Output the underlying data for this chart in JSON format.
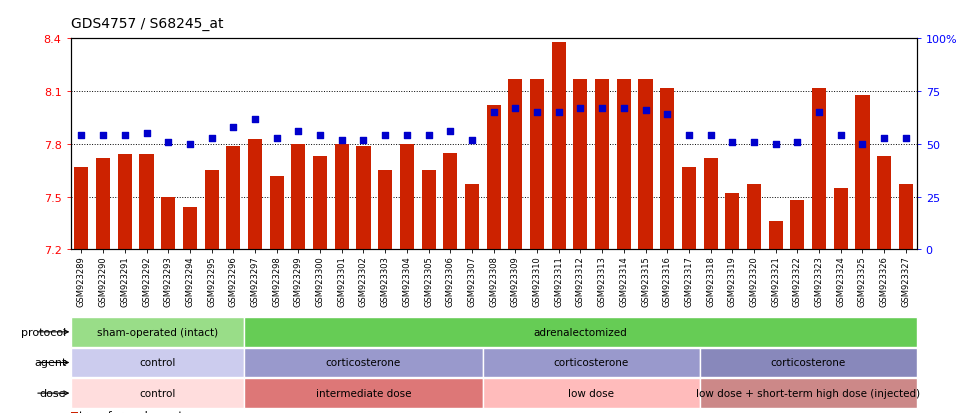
{
  "title": "GDS4757 / S68245_at",
  "samples": [
    "GSM923289",
    "GSM923290",
    "GSM923291",
    "GSM923292",
    "GSM923293",
    "GSM923294",
    "GSM923295",
    "GSM923296",
    "GSM923297",
    "GSM923298",
    "GSM923299",
    "GSM923300",
    "GSM923301",
    "GSM923302",
    "GSM923303",
    "GSM923304",
    "GSM923305",
    "GSM923306",
    "GSM923307",
    "GSM923308",
    "GSM923309",
    "GSM923310",
    "GSM923311",
    "GSM923312",
    "GSM923313",
    "GSM923314",
    "GSM923315",
    "GSM923316",
    "GSM923317",
    "GSM923318",
    "GSM923319",
    "GSM923320",
    "GSM923321",
    "GSM923322",
    "GSM923323",
    "GSM923324",
    "GSM923325",
    "GSM923326",
    "GSM923327"
  ],
  "bar_values": [
    7.67,
    7.72,
    7.74,
    7.74,
    7.5,
    7.44,
    7.65,
    7.79,
    7.83,
    7.62,
    7.8,
    7.73,
    7.8,
    7.79,
    7.65,
    7.8,
    7.65,
    7.75,
    7.57,
    8.02,
    8.17,
    8.17,
    8.38,
    8.17,
    8.17,
    8.17,
    8.17,
    8.12,
    7.67,
    7.72,
    7.52,
    7.57,
    7.36,
    7.48,
    8.12,
    7.55,
    8.08,
    7.73,
    7.57
  ],
  "dot_pcts": [
    54,
    54,
    54,
    55,
    51,
    50,
    53,
    58,
    62,
    53,
    56,
    54,
    52,
    52,
    54,
    54,
    54,
    56,
    52,
    65,
    67,
    65,
    65,
    67,
    67,
    67,
    66,
    64,
    54,
    54,
    51,
    51,
    50,
    51,
    65,
    54,
    50,
    53,
    53
  ],
  "ylim_left": [
    7.2,
    8.4
  ],
  "yticks_left": [
    7.2,
    7.5,
    7.8,
    8.1,
    8.4
  ],
  "ylim_right": [
    0,
    100
  ],
  "yticks_right": [
    0,
    25,
    50,
    75,
    100
  ],
  "bar_color": "#cc2200",
  "dot_color": "#0000cc",
  "protocol_groups": [
    {
      "label": "sham-operated (intact)",
      "start": 0,
      "end": 8,
      "color": "#99dd88"
    },
    {
      "label": "adrenalectomized",
      "start": 8,
      "end": 39,
      "color": "#66cc55"
    }
  ],
  "agent_groups": [
    {
      "label": "control",
      "start": 0,
      "end": 8,
      "color": "#ccccee"
    },
    {
      "label": "corticosterone",
      "start": 8,
      "end": 19,
      "color": "#9999cc"
    },
    {
      "label": "corticosterone",
      "start": 19,
      "end": 29,
      "color": "#9999cc"
    },
    {
      "label": "corticosterone",
      "start": 29,
      "end": 39,
      "color": "#8888bb"
    }
  ],
  "dose_groups": [
    {
      "label": "control",
      "start": 0,
      "end": 8,
      "color": "#ffdddd"
    },
    {
      "label": "intermediate dose",
      "start": 8,
      "end": 19,
      "color": "#dd7777"
    },
    {
      "label": "low dose",
      "start": 19,
      "end": 29,
      "color": "#ffbbbb"
    },
    {
      "label": "low dose + short-term high dose (injected)",
      "start": 29,
      "end": 39,
      "color": "#cc8888"
    }
  ]
}
